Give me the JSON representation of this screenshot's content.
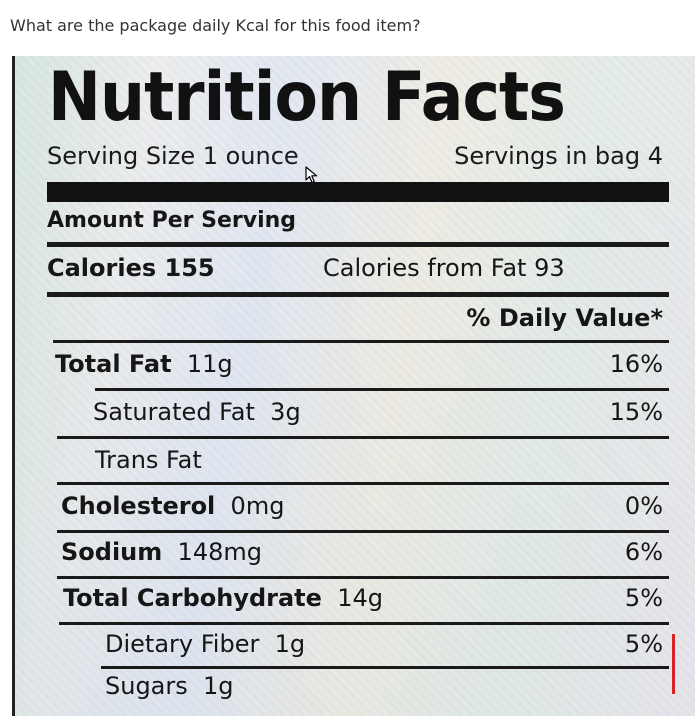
{
  "question": "What are the package daily Kcal for this food item?",
  "label": {
    "title": "Nutrition Facts",
    "serving_size": "Serving Size 1 ounce",
    "servings_per_bag": "Servings in bag 4",
    "amount_per_serving": "Amount Per Serving",
    "calories": "Calories 155",
    "calories_from_fat": "Calories from Fat 93",
    "daily_value_header": "% Daily Value*",
    "rows": [
      {
        "name": "Total Fat",
        "amount": "11g",
        "dv": "16%",
        "bold": true
      },
      {
        "name": "Saturated Fat",
        "amount": "3g",
        "dv": "15%",
        "bold": false
      },
      {
        "name": "Trans Fat",
        "amount": "",
        "dv": "",
        "bold": false
      },
      {
        "name": "Cholesterol",
        "amount": "0mg",
        "dv": "0%",
        "bold": true
      },
      {
        "name": "Sodium",
        "amount": "148mg",
        "dv": "6%",
        "bold": true
      },
      {
        "name": "Total Carbohydrate",
        "amount": "14g",
        "dv": "5%",
        "bold": true
      },
      {
        "name": "Dietary Fiber",
        "amount": "1g",
        "dv": "5%",
        "bold": false
      },
      {
        "name": "Sugars",
        "amount": "1g",
        "dv": "",
        "bold": false
      }
    ]
  },
  "colors": {
    "ink": "#111111",
    "annotation_mark": "#d62424"
  }
}
